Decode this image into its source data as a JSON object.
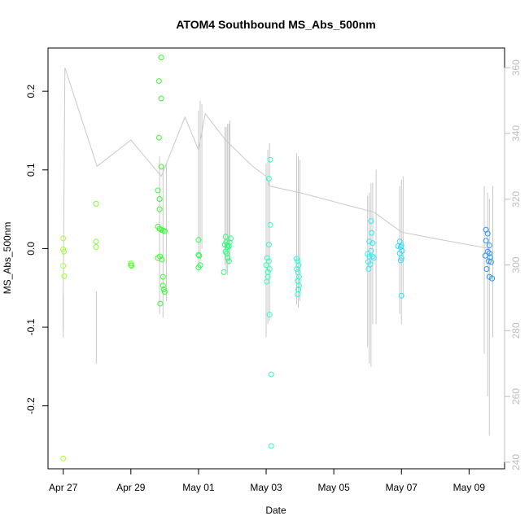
{
  "chart_data": {
    "type": "scatter",
    "title": "ATOM4 Southbound MS_Abs_500nm",
    "xlabel": "Date",
    "ylabel": "MS_Abs_500nm",
    "x_unit": "days since Apr 27",
    "xlim": [
      -0.45,
      13.05
    ],
    "ylim": [
      -0.28,
      0.255
    ],
    "y2lim": [
      238,
      366
    ],
    "x_ticks": [
      {
        "value": 0,
        "label": "Apr 27"
      },
      {
        "value": 2,
        "label": "Apr 29"
      },
      {
        "value": 4,
        "label": "May 01"
      },
      {
        "value": 6,
        "label": "May 03"
      },
      {
        "value": 8,
        "label": "May 05"
      },
      {
        "value": 10,
        "label": "May 07"
      },
      {
        "value": 12,
        "label": "May 09"
      }
    ],
    "y_ticks": [
      {
        "value": -0.2,
        "label": "-0.2"
      },
      {
        "value": -0.1,
        "label": "-0.1"
      },
      {
        "value": 0.0,
        "label": "0.0"
      },
      {
        "value": 0.1,
        "label": "0.1"
      },
      {
        "value": 0.2,
        "label": "0.2"
      }
    ],
    "y2_ticks": [
      {
        "value": 240,
        "label": "240"
      },
      {
        "value": 260,
        "label": "260"
      },
      {
        "value": 280,
        "label": "280"
      },
      {
        "value": 300,
        "label": "300"
      },
      {
        "value": 320,
        "label": "320"
      },
      {
        "value": 340,
        "label": "340"
      },
      {
        "value": 360,
        "label": "360"
      }
    ],
    "point_color_gradient": [
      "#a6ff33",
      "#2bff2b",
      "#33ffcc",
      "#33e6ff",
      "#2b8cff"
    ],
    "points": [
      [
        0.0,
        0.013
      ],
      [
        0.0,
        -0.001
      ],
      [
        0.02,
        -0.004
      ],
      [
        0.0,
        -0.022
      ],
      [
        0.03,
        -0.035
      ],
      [
        0.0,
        -0.267
      ],
      [
        0.97,
        0.057
      ],
      [
        0.97,
        0.009
      ],
      [
        0.97,
        0.002
      ],
      [
        2.0,
        -0.019
      ],
      [
        2.0,
        -0.021
      ],
      [
        2.02,
        -0.022
      ],
      [
        2.83,
        0.213
      ],
      [
        2.9,
        0.243
      ],
      [
        2.9,
        0.191
      ],
      [
        2.83,
        0.141
      ],
      [
        2.9,
        0.104
      ],
      [
        2.8,
        0.074
      ],
      [
        2.85,
        0.063
      ],
      [
        2.85,
        0.05
      ],
      [
        2.8,
        0.028
      ],
      [
        2.85,
        0.025
      ],
      [
        2.9,
        0.024
      ],
      [
        2.95,
        0.023
      ],
      [
        3.0,
        0.022
      ],
      [
        2.8,
        -0.012
      ],
      [
        2.86,
        -0.01
      ],
      [
        2.92,
        -0.014
      ],
      [
        2.95,
        -0.036
      ],
      [
        2.95,
        -0.047
      ],
      [
        2.97,
        -0.052
      ],
      [
        3.0,
        -0.055
      ],
      [
        2.87,
        -0.07
      ],
      [
        4.0,
        0.011
      ],
      [
        4.0,
        -0.008
      ],
      [
        4.02,
        -0.009
      ],
      [
        4.05,
        -0.021
      ],
      [
        4.0,
        -0.024
      ],
      [
        4.8,
        0.015
      ],
      [
        4.82,
        0.008
      ],
      [
        4.78,
        0.005
      ],
      [
        4.85,
        0.004
      ],
      [
        4.9,
        0.003
      ],
      [
        4.92,
        0.008
      ],
      [
        4.95,
        0.013
      ],
      [
        4.86,
        0.002
      ],
      [
        4.8,
        -0.004
      ],
      [
        4.83,
        -0.006
      ],
      [
        4.86,
        -0.012
      ],
      [
        4.9,
        -0.016
      ],
      [
        4.75,
        -0.03
      ],
      [
        6.12,
        0.113
      ],
      [
        6.08,
        0.089
      ],
      [
        6.12,
        0.03
      ],
      [
        6.08,
        0.005
      ],
      [
        6.03,
        -0.012
      ],
      [
        6.08,
        -0.016
      ],
      [
        6.0,
        -0.021
      ],
      [
        6.1,
        -0.026
      ],
      [
        6.05,
        -0.03
      ],
      [
        6.05,
        -0.036
      ],
      [
        6.02,
        -0.042
      ],
      [
        6.1,
        -0.084
      ],
      [
        6.15,
        -0.16
      ],
      [
        6.15,
        -0.251
      ],
      [
        6.9,
        -0.013
      ],
      [
        6.93,
        -0.016
      ],
      [
        6.96,
        -0.021
      ],
      [
        6.91,
        -0.026
      ],
      [
        6.94,
        -0.03
      ],
      [
        6.97,
        -0.036
      ],
      [
        6.93,
        -0.041
      ],
      [
        6.97,
        -0.047
      ],
      [
        6.95,
        -0.052
      ],
      [
        6.93,
        -0.058
      ],
      [
        9.1,
        0.035
      ],
      [
        9.12,
        0.02
      ],
      [
        9.05,
        0.009
      ],
      [
        9.15,
        0.007
      ],
      [
        9.1,
        -0.003
      ],
      [
        9.0,
        -0.007
      ],
      [
        9.05,
        -0.01
      ],
      [
        9.15,
        -0.01
      ],
      [
        9.18,
        -0.012
      ],
      [
        9.02,
        -0.017
      ],
      [
        9.08,
        -0.02
      ],
      [
        9.03,
        -0.026
      ],
      [
        9.95,
        0.009
      ],
      [
        10.0,
        0.004
      ],
      [
        9.9,
        0.003
      ],
      [
        9.98,
        0.002
      ],
      [
        10.02,
        -0.003
      ],
      [
        9.95,
        -0.006
      ],
      [
        10.0,
        -0.012
      ],
      [
        9.98,
        -0.015
      ],
      [
        10.0,
        -0.06
      ],
      [
        12.5,
        0.024
      ],
      [
        12.55,
        0.019
      ],
      [
        12.5,
        0.01
      ],
      [
        12.6,
        0.004
      ],
      [
        12.55,
        -0.004
      ],
      [
        12.6,
        -0.006
      ],
      [
        12.48,
        -0.009
      ],
      [
        12.62,
        -0.011
      ],
      [
        12.58,
        -0.016
      ],
      [
        12.65,
        -0.017
      ],
      [
        12.52,
        -0.026
      ],
      [
        12.6,
        -0.036
      ],
      [
        12.68,
        -0.038
      ]
    ],
    "line_series": {
      "name": "secondary axis trace",
      "axis": "right",
      "color": "#c8c8c8",
      "path": [
        [
          0.0,
          280
        ],
        [
          0.0,
          291
        ],
        [
          0.05,
          360
        ],
        [
          1.0,
          330
        ],
        [
          2.0,
          338
        ],
        [
          2.9,
          327
        ],
        [
          3.6,
          345
        ],
        [
          4.0,
          335
        ],
        [
          4.2,
          346
        ],
        [
          4.8,
          338
        ],
        [
          5.6,
          330
        ],
        [
          6.0,
          327
        ],
        [
          6.1,
          324
        ],
        [
          7.0,
          322
        ],
        [
          9.2,
          316
        ],
        [
          10.0,
          310
        ],
        [
          11.0,
          308
        ],
        [
          12.6,
          305
        ]
      ],
      "spikes": [
        [
          0.0,
          278,
          291
        ],
        [
          0.98,
          270,
          292
        ],
        [
          2.85,
          285,
          333
        ],
        [
          2.95,
          284,
          330
        ],
        [
          3.05,
          289,
          331
        ],
        [
          4.0,
          298,
          347
        ],
        [
          4.05,
          300,
          350
        ],
        [
          4.1,
          305,
          349
        ],
        [
          4.78,
          300,
          342
        ],
        [
          4.82,
          298,
          342
        ],
        [
          4.86,
          297,
          343
        ],
        [
          4.9,
          300,
          343
        ],
        [
          4.93,
          301,
          344
        ],
        [
          6.0,
          278,
          331
        ],
        [
          6.05,
          282,
          335
        ],
        [
          6.1,
          283,
          337
        ],
        [
          6.9,
          288,
          334
        ],
        [
          6.95,
          287,
          333
        ],
        [
          7.0,
          289,
          332
        ],
        [
          9.0,
          275,
          321
        ],
        [
          9.05,
          270,
          322
        ],
        [
          9.1,
          269,
          325
        ],
        [
          9.15,
          282,
          325
        ],
        [
          9.25,
          282,
          329
        ],
        [
          9.95,
          285,
          324
        ],
        [
          10.0,
          282,
          326
        ],
        [
          10.05,
          290,
          327
        ],
        [
          12.45,
          273,
          324
        ],
        [
          12.55,
          260,
          322
        ],
        [
          12.6,
          248,
          320
        ],
        [
          12.7,
          278,
          324
        ]
      ]
    }
  }
}
